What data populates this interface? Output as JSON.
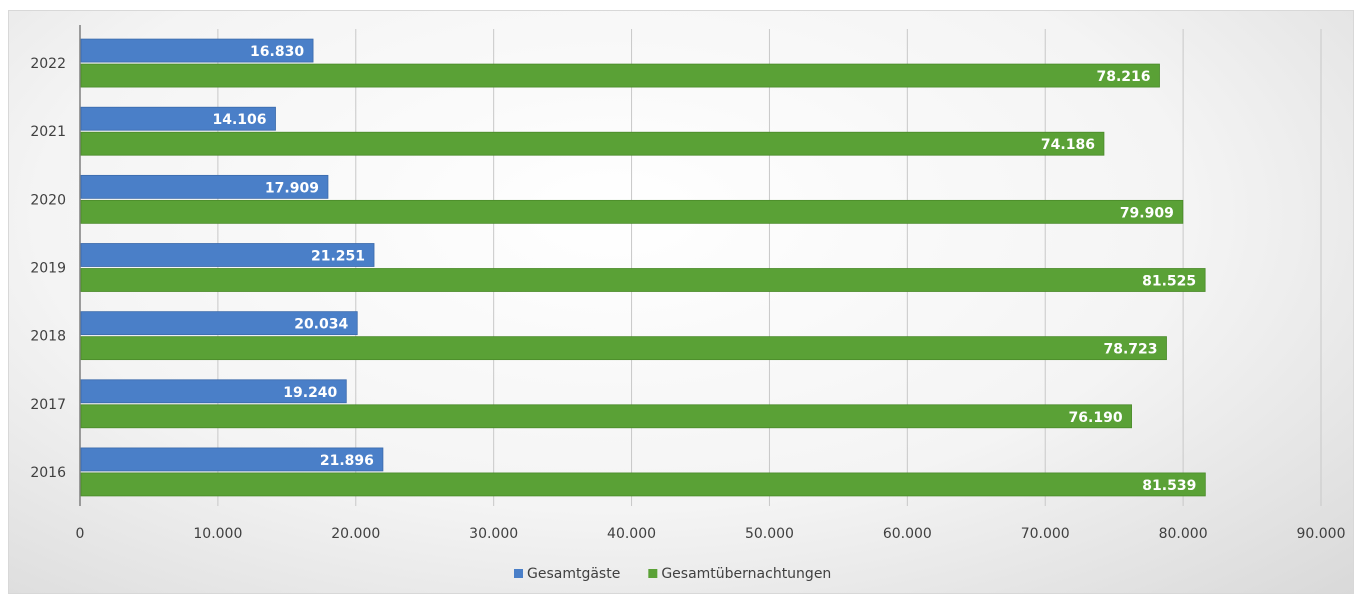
{
  "chart_data": {
    "type": "bar",
    "orientation": "horizontal",
    "categories": [
      "2022",
      "2021",
      "2020",
      "2019",
      "2018",
      "2017",
      "2016"
    ],
    "series": [
      {
        "name": "Gesamtgäste",
        "color": "#4a7fc8",
        "values": [
          16830,
          14106,
          17909,
          21251,
          20034,
          19240,
          21896
        ],
        "labels": [
          "16.830",
          "14.106",
          "17.909",
          "21.251",
          "20.034",
          "19.240",
          "21.896"
        ]
      },
      {
        "name": "Gesamtübernachtungen",
        "color": "#5aa136",
        "values": [
          78216,
          74186,
          79909,
          81525,
          78723,
          76190,
          81539
        ],
        "labels": [
          "78.216",
          "74.186",
          "79.909",
          "81.525",
          "78.723",
          "76.190",
          "81.539"
        ]
      }
    ],
    "xlim": [
      0,
      90000
    ],
    "xticks": [
      0,
      10000,
      20000,
      30000,
      40000,
      50000,
      60000,
      70000,
      80000,
      90000
    ],
    "xtick_labels": [
      "0",
      "10.000",
      "20.000",
      "30.000",
      "40.000",
      "50.000",
      "60.000",
      "70.000",
      "80.000",
      "90.000"
    ],
    "grid": true,
    "legend_position": "bottom-center"
  }
}
